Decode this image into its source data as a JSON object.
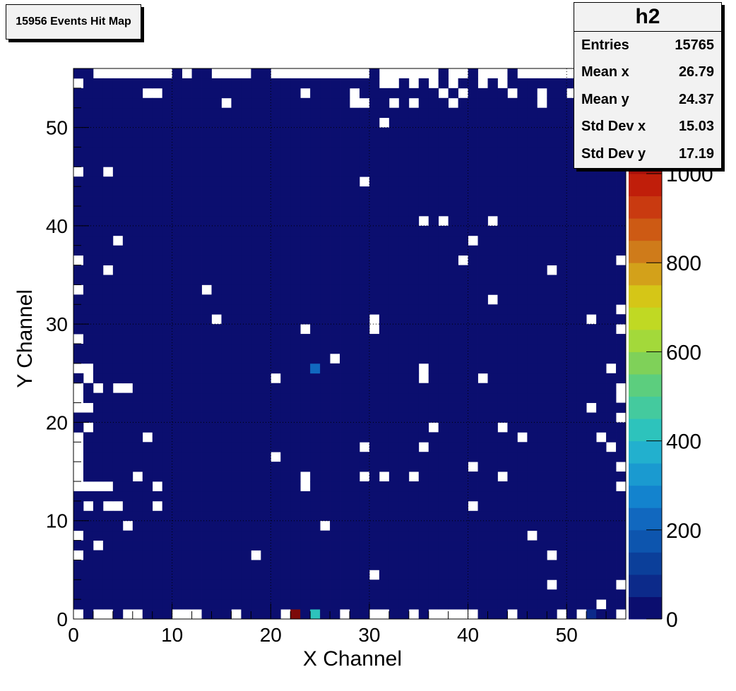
{
  "title_box": {
    "text": "15956 Events Hit Map"
  },
  "stats": {
    "name": "h2",
    "rows": [
      {
        "label": "Entries",
        "value": "15765"
      },
      {
        "label": "Mean x",
        "value": "26.79"
      },
      {
        "label": "Mean y",
        "value": "24.37"
      },
      {
        "label": "Std Dev x",
        "value": "15.03"
      },
      {
        "label": "Std Dev y",
        "value": "17.19"
      }
    ]
  },
  "chart_data": {
    "type": "heatmap",
    "title": "",
    "xlabel": "X Channel",
    "ylabel": "Y Channel",
    "xlim": [
      0,
      56
    ],
    "ylim": [
      0,
      56
    ],
    "x_ticks": [
      0,
      10,
      20,
      30,
      40,
      50
    ],
    "y_ticks": [
      0,
      10,
      20,
      30,
      40,
      50
    ],
    "grid": true,
    "colorbar": {
      "min": 0,
      "max": 1100,
      "ticks": [
        0,
        200,
        400,
        600,
        800,
        1000
      ]
    },
    "background_value": 8,
    "hot_cells": [
      {
        "x": 22,
        "y": 0,
        "value": 1100
      },
      {
        "x": 24,
        "y": 0,
        "value": 420
      },
      {
        "x": 52,
        "y": 0,
        "value": 80
      },
      {
        "x": 24,
        "y": 25,
        "value": 220
      }
    ],
    "empty_cells": [
      [
        2,
        55
      ],
      [
        3,
        55
      ],
      [
        4,
        55
      ],
      [
        5,
        55
      ],
      [
        6,
        55
      ],
      [
        7,
        55
      ],
      [
        8,
        55
      ],
      [
        9,
        55
      ],
      [
        11,
        55
      ],
      [
        14,
        55
      ],
      [
        15,
        55
      ],
      [
        16,
        55
      ],
      [
        17,
        55
      ],
      [
        20,
        55
      ],
      [
        21,
        55
      ],
      [
        22,
        55
      ],
      [
        23,
        55
      ],
      [
        24,
        55
      ],
      [
        25,
        55
      ],
      [
        26,
        55
      ],
      [
        27,
        55
      ],
      [
        28,
        55
      ],
      [
        29,
        55
      ],
      [
        31,
        55
      ],
      [
        32,
        55
      ],
      [
        33,
        55
      ],
      [
        34,
        55
      ],
      [
        35,
        55
      ],
      [
        36,
        55
      ],
      [
        38,
        55
      ],
      [
        39,
        55
      ],
      [
        41,
        55
      ],
      [
        42,
        55
      ],
      [
        43,
        55
      ],
      [
        45,
        55
      ],
      [
        46,
        55
      ],
      [
        47,
        55
      ],
      [
        48,
        55
      ],
      [
        49,
        55
      ],
      [
        50,
        55
      ],
      [
        51,
        55
      ],
      [
        52,
        55
      ],
      [
        0,
        54
      ],
      [
        31,
        54
      ],
      [
        32,
        54
      ],
      [
        34,
        54
      ],
      [
        36,
        54
      ],
      [
        38,
        54
      ],
      [
        41,
        54
      ],
      [
        43,
        54
      ],
      [
        7,
        53
      ],
      [
        8,
        53
      ],
      [
        23,
        53
      ],
      [
        28,
        53
      ],
      [
        37,
        53
      ],
      [
        39,
        53
      ],
      [
        44,
        53
      ],
      [
        47,
        53
      ],
      [
        50,
        53
      ],
      [
        15,
        52
      ],
      [
        28,
        52
      ],
      [
        29,
        52
      ],
      [
        32,
        52
      ],
      [
        34,
        52
      ],
      [
        38,
        52
      ],
      [
        47,
        52
      ],
      [
        31,
        50
      ],
      [
        0,
        45
      ],
      [
        3,
        45
      ],
      [
        29,
        44
      ],
      [
        35,
        40
      ],
      [
        37,
        40
      ],
      [
        42,
        40
      ],
      [
        4,
        38
      ],
      [
        40,
        38
      ],
      [
        0,
        36
      ],
      [
        39,
        36
      ],
      [
        55,
        36
      ],
      [
        3,
        35
      ],
      [
        48,
        35
      ],
      [
        0,
        33
      ],
      [
        13,
        33
      ],
      [
        42,
        32
      ],
      [
        55,
        31
      ],
      [
        14,
        30
      ],
      [
        30,
        30
      ],
      [
        52,
        30
      ],
      [
        23,
        29
      ],
      [
        30,
        29
      ],
      [
        55,
        29
      ],
      [
        0,
        28
      ],
      [
        26,
        26
      ],
      [
        0,
        25
      ],
      [
        1,
        25
      ],
      [
        35,
        25
      ],
      [
        54,
        25
      ],
      [
        1,
        24
      ],
      [
        20,
        24
      ],
      [
        35,
        24
      ],
      [
        41,
        24
      ],
      [
        0,
        23
      ],
      [
        2,
        23
      ],
      [
        4,
        23
      ],
      [
        5,
        23
      ],
      [
        55,
        23
      ],
      [
        0,
        22
      ],
      [
        55,
        22
      ],
      [
        0,
        21
      ],
      [
        1,
        21
      ],
      [
        52,
        21
      ],
      [
        55,
        20
      ],
      [
        1,
        19
      ],
      [
        36,
        19
      ],
      [
        43,
        19
      ],
      [
        0,
        18
      ],
      [
        7,
        18
      ],
      [
        45,
        18
      ],
      [
        53,
        18
      ],
      [
        0,
        17
      ],
      [
        29,
        17
      ],
      [
        35,
        17
      ],
      [
        54,
        17
      ],
      [
        0,
        16
      ],
      [
        20,
        16
      ],
      [
        0,
        15
      ],
      [
        40,
        15
      ],
      [
        55,
        15
      ],
      [
        0,
        14
      ],
      [
        6,
        14
      ],
      [
        23,
        14
      ],
      [
        29,
        14
      ],
      [
        31,
        14
      ],
      [
        34,
        14
      ],
      [
        43,
        14
      ],
      [
        0,
        13
      ],
      [
        1,
        13
      ],
      [
        2,
        13
      ],
      [
        3,
        13
      ],
      [
        8,
        13
      ],
      [
        23,
        13
      ],
      [
        55,
        13
      ],
      [
        1,
        11
      ],
      [
        3,
        11
      ],
      [
        4,
        11
      ],
      [
        8,
        11
      ],
      [
        40,
        11
      ],
      [
        5,
        9
      ],
      [
        25,
        9
      ],
      [
        0,
        8
      ],
      [
        46,
        8
      ],
      [
        2,
        7
      ],
      [
        0,
        6
      ],
      [
        18,
        6
      ],
      [
        48,
        6
      ],
      [
        30,
        4
      ],
      [
        48,
        3
      ],
      [
        55,
        3
      ],
      [
        53,
        1
      ],
      [
        0,
        0
      ],
      [
        2,
        0
      ],
      [
        3,
        0
      ],
      [
        5,
        0
      ],
      [
        6,
        0
      ],
      [
        10,
        0
      ],
      [
        11,
        0
      ],
      [
        12,
        0
      ],
      [
        16,
        0
      ],
      [
        21,
        0
      ],
      [
        27,
        0
      ],
      [
        30,
        0
      ],
      [
        31,
        0
      ],
      [
        34,
        0
      ],
      [
        36,
        0
      ],
      [
        37,
        0
      ],
      [
        38,
        0
      ],
      [
        39,
        0
      ],
      [
        40,
        0
      ],
      [
        44,
        0
      ],
      [
        49,
        0
      ],
      [
        51,
        0
      ],
      [
        55,
        0
      ]
    ]
  }
}
